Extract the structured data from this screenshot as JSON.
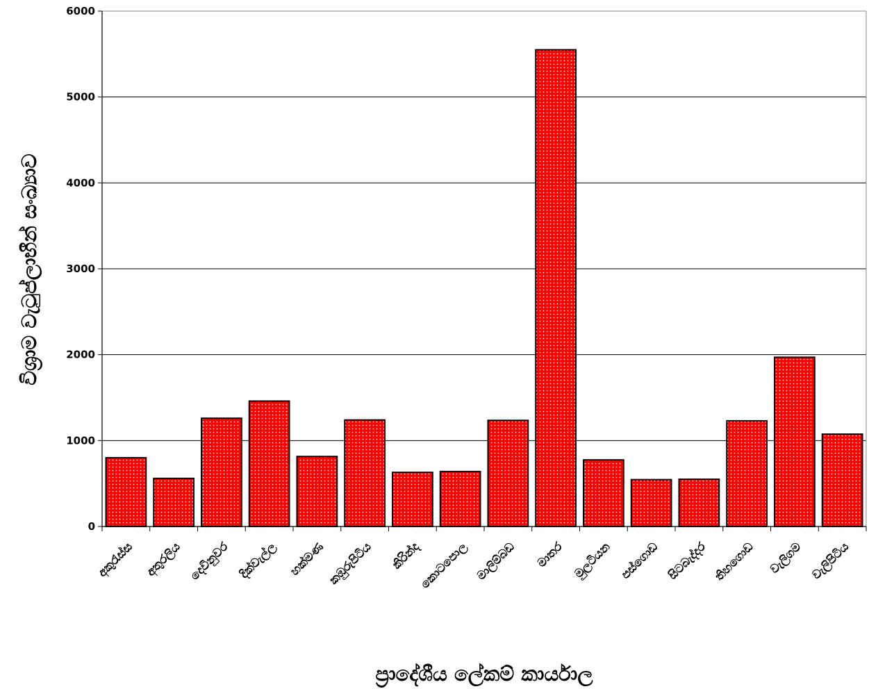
{
  "chart_data": {
    "type": "bar",
    "title": "",
    "xlabel": "ප්‍රාදේශීය ලේකම් කාර්යාල",
    "ylabel": "විශ්‍රාම වැටුප්ලාභීන් සංඛ්‍යාව",
    "categories": [
      "අකුරැස්ස",
      "අතුරලිය",
      "දෙවිනුවර",
      "දික්වැල්ල",
      "හක්මණ",
      "කඹුරුපිටිය",
      "කිරින්ද",
      "කොටපොල",
      "මාලිම්බඩ",
      "මාතර",
      "මුලටියන",
      "පස්ගොඩ",
      "සිටබැද්දර",
      "තිහගොඩ",
      "වැලිගම",
      "වැලිපිටිය"
    ],
    "values": [
      800,
      560,
      1260,
      1460,
      815,
      1240,
      630,
      640,
      1235,
      5550,
      775,
      545,
      550,
      1230,
      1970,
      1075
    ],
    "ylim": [
      0,
      6000
    ],
    "yticks": [
      0,
      1000,
      2000,
      3000,
      4000,
      5000,
      6000
    ],
    "grid": true,
    "legend": "none",
    "bar_color": "#ff0000",
    "dot_color": "#ffffff",
    "outline_color": "#000000"
  }
}
